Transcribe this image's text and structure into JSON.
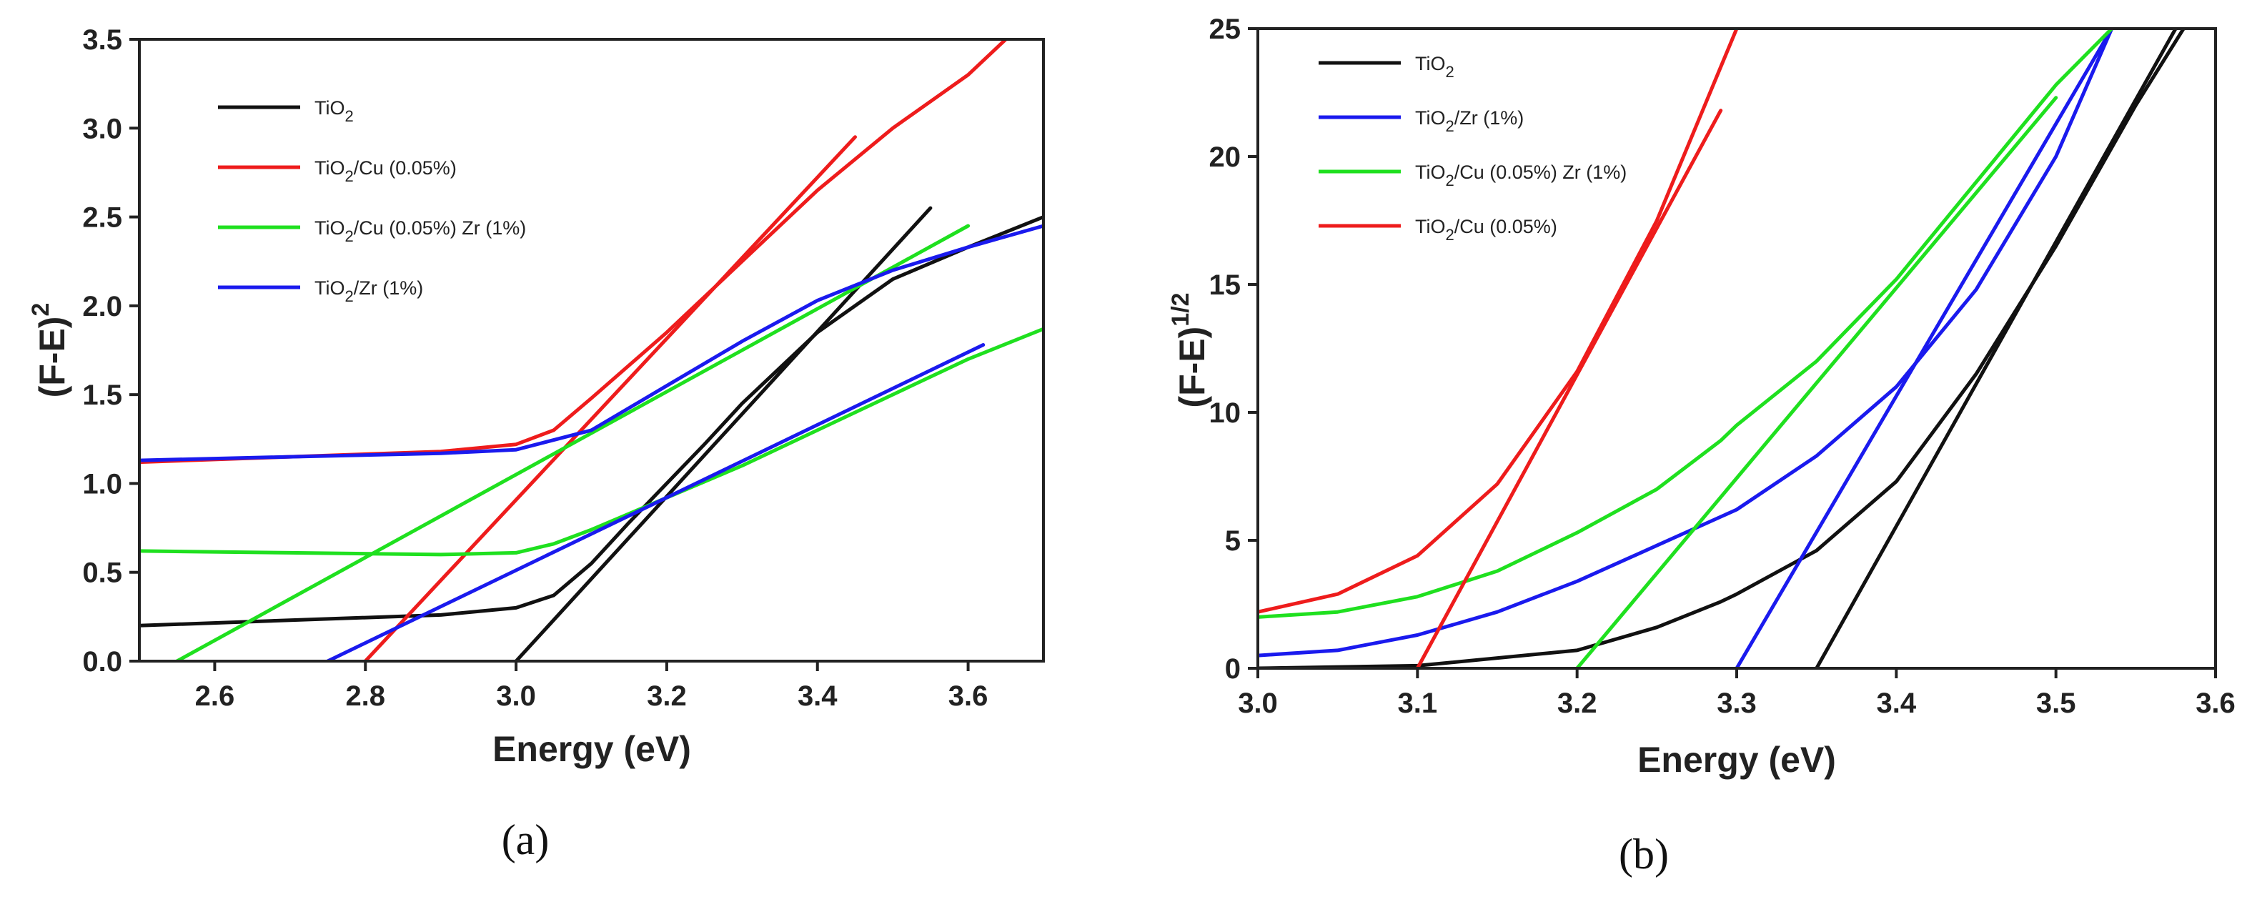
{
  "colors": {
    "TiO2": "#111111",
    "Cu": "#ee1c1c",
    "CuZr": "#1fe01f",
    "Zr": "#1a1aee"
  },
  "chart_data": [
    {
      "id": "a",
      "type": "line",
      "panel_label": "(a)",
      "xlabel": "Energy (eV)",
      "ylabel": "(F-E)",
      "ylabel_sup": "2",
      "xlim": [
        2.5,
        3.7
      ],
      "ylim": [
        0.0,
        3.5
      ],
      "x_ticks": [
        2.6,
        2.8,
        3.0,
        3.2,
        3.4,
        3.6
      ],
      "x_tick_labels": [
        "2.6",
        "2.8",
        "3.0",
        "3.2",
        "3.4",
        "3.6"
      ],
      "y_ticks": [
        0,
        0.5,
        1,
        1.5,
        2,
        2.5,
        3,
        3.5
      ],
      "y_tick_labels": [
        "0.0",
        "0.5",
        "1.0",
        "1.5",
        "2.0",
        "2.5",
        "3.0",
        "3.5"
      ],
      "legend": [
        {
          "series": "TiO2",
          "text": "TiO",
          "sub": "2",
          "suffix": ""
        },
        {
          "series": "Cu",
          "text": "TiO",
          "sub": "2",
          "suffix": "/Cu (0.05%)"
        },
        {
          "series": "CuZr",
          "text": "TiO",
          "sub": "2",
          "suffix": "/Cu (0.05%) Zr (1%)"
        },
        {
          "series": "Zr",
          "text": "TiO",
          "sub": "2",
          "suffix": "/Zr (1%)"
        }
      ],
      "series": [
        {
          "name": "TiO2 curve",
          "color_key": "TiO2",
          "x": [
            2.5,
            2.7,
            2.9,
            3.0,
            3.05,
            3.1,
            3.15,
            3.2,
            3.25,
            3.3,
            3.4,
            3.5,
            3.6,
            3.7
          ],
          "y": [
            0.2,
            0.23,
            0.26,
            0.3,
            0.37,
            0.55,
            0.78,
            1.0,
            1.22,
            1.45,
            1.85,
            2.15,
            2.33,
            2.5
          ]
        },
        {
          "name": "TiO2 fit",
          "color_key": "TiO2",
          "x": [
            3.0,
            3.55
          ],
          "y": [
            0.0,
            2.55
          ]
        },
        {
          "name": "Cu curve",
          "color_key": "Cu",
          "x": [
            2.5,
            2.7,
            2.9,
            3.0,
            3.05,
            3.1,
            3.2,
            3.3,
            3.4,
            3.5,
            3.6,
            3.65
          ],
          "y": [
            1.12,
            1.15,
            1.18,
            1.22,
            1.3,
            1.48,
            1.85,
            2.25,
            2.65,
            3.0,
            3.3,
            3.5
          ]
        },
        {
          "name": "Cu fit",
          "color_key": "Cu",
          "x": [
            2.8,
            3.45
          ],
          "y": [
            0.0,
            2.95
          ]
        },
        {
          "name": "CuZr curve",
          "color_key": "CuZr",
          "x": [
            2.5,
            2.7,
            2.9,
            3.0,
            3.05,
            3.1,
            3.2,
            3.3,
            3.4,
            3.5,
            3.6,
            3.7
          ],
          "y": [
            0.62,
            0.61,
            0.6,
            0.61,
            0.66,
            0.74,
            0.92,
            1.1,
            1.3,
            1.5,
            1.7,
            1.87
          ]
        },
        {
          "name": "CuZr fit",
          "color_key": "CuZr",
          "x": [
            2.55,
            3.6
          ],
          "y": [
            0.0,
            2.45
          ]
        },
        {
          "name": "Zr curve",
          "color_key": "Zr",
          "x": [
            2.5,
            2.7,
            2.9,
            3.0,
            3.1,
            3.2,
            3.3,
            3.4,
            3.5,
            3.6,
            3.7
          ],
          "y": [
            1.13,
            1.15,
            1.17,
            1.19,
            1.3,
            1.55,
            1.8,
            2.03,
            2.2,
            2.33,
            2.45
          ]
        },
        {
          "name": "Zr fit",
          "color_key": "Zr",
          "x": [
            2.75,
            3.62
          ],
          "y": [
            0.0,
            1.78
          ]
        }
      ]
    },
    {
      "id": "b",
      "type": "line",
      "panel_label": "(b)",
      "xlabel": "Energy (eV)",
      "ylabel": "(F-E)",
      "ylabel_sup": "1/2",
      "xlim": [
        3.0,
        3.6
      ],
      "ylim": [
        0,
        25
      ],
      "x_ticks": [
        3.0,
        3.1,
        3.2,
        3.3,
        3.4,
        3.5,
        3.6
      ],
      "x_tick_labels": [
        "3.0",
        "3.1",
        "3.2",
        "3.3",
        "3.4",
        "3.5",
        "3.6"
      ],
      "y_ticks": [
        0,
        5,
        10,
        15,
        20,
        25
      ],
      "y_tick_labels": [
        "0",
        "5",
        "10",
        "15",
        "20",
        "25"
      ],
      "legend": [
        {
          "series": "TiO2",
          "text": "TiO",
          "sub": "2",
          "suffix": ""
        },
        {
          "series": "Zr",
          "text": "TiO",
          "sub": "2",
          "suffix": "/Zr (1%)"
        },
        {
          "series": "CuZr",
          "text": "TiO",
          "sub": "2",
          "suffix": "/Cu (0.05%) Zr (1%)"
        },
        {
          "series": "Cu",
          "text": "TiO",
          "sub": "2",
          "suffix": "/Cu (0.05%)"
        }
      ],
      "series": [
        {
          "name": "TiO2 curve",
          "color_key": "TiO2",
          "x": [
            3.0,
            3.1,
            3.2,
            3.25,
            3.29,
            3.3,
            3.35,
            3.4,
            3.45,
            3.5,
            3.55,
            3.58
          ],
          "y": [
            0.0,
            0.1,
            0.7,
            1.6,
            2.6,
            2.9,
            4.6,
            7.3,
            11.5,
            16.5,
            22.0,
            25.0
          ]
        },
        {
          "name": "TiO2 fit",
          "color_key": "TiO2",
          "x": [
            3.35,
            3.575
          ],
          "y": [
            0.0,
            25.0
          ]
        },
        {
          "name": "Zr curve",
          "color_key": "Zr",
          "x": [
            3.0,
            3.05,
            3.1,
            3.15,
            3.2,
            3.25,
            3.3,
            3.35,
            3.4,
            3.45,
            3.5,
            3.535
          ],
          "y": [
            0.5,
            0.7,
            1.3,
            2.2,
            3.4,
            4.8,
            6.2,
            8.3,
            11.0,
            14.8,
            20.0,
            25.0
          ]
        },
        {
          "name": "Zr fit",
          "color_key": "Zr",
          "x": [
            3.3,
            3.535
          ],
          "y": [
            0.0,
            25.0
          ]
        },
        {
          "name": "CuZr curve",
          "color_key": "CuZr",
          "x": [
            3.0,
            3.05,
            3.1,
            3.15,
            3.2,
            3.25,
            3.29,
            3.3,
            3.35,
            3.4,
            3.45,
            3.5,
            3.535
          ],
          "y": [
            2.0,
            2.2,
            2.8,
            3.8,
            5.3,
            7.0,
            8.9,
            9.5,
            12.0,
            15.2,
            19.0,
            22.8,
            25.0
          ]
        },
        {
          "name": "CuZr fit",
          "color_key": "CuZr",
          "x": [
            3.2,
            3.5
          ],
          "y": [
            0.0,
            22.3
          ]
        },
        {
          "name": "Cu curve",
          "color_key": "Cu",
          "x": [
            3.0,
            3.05,
            3.1,
            3.15,
            3.2,
            3.25,
            3.28,
            3.3
          ],
          "y": [
            2.2,
            2.9,
            4.4,
            7.2,
            11.6,
            17.5,
            22.0,
            25.0
          ]
        },
        {
          "name": "Cu fit",
          "color_key": "Cu",
          "x": [
            3.1,
            3.29
          ],
          "y": [
            0.0,
            21.8
          ]
        }
      ]
    }
  ]
}
